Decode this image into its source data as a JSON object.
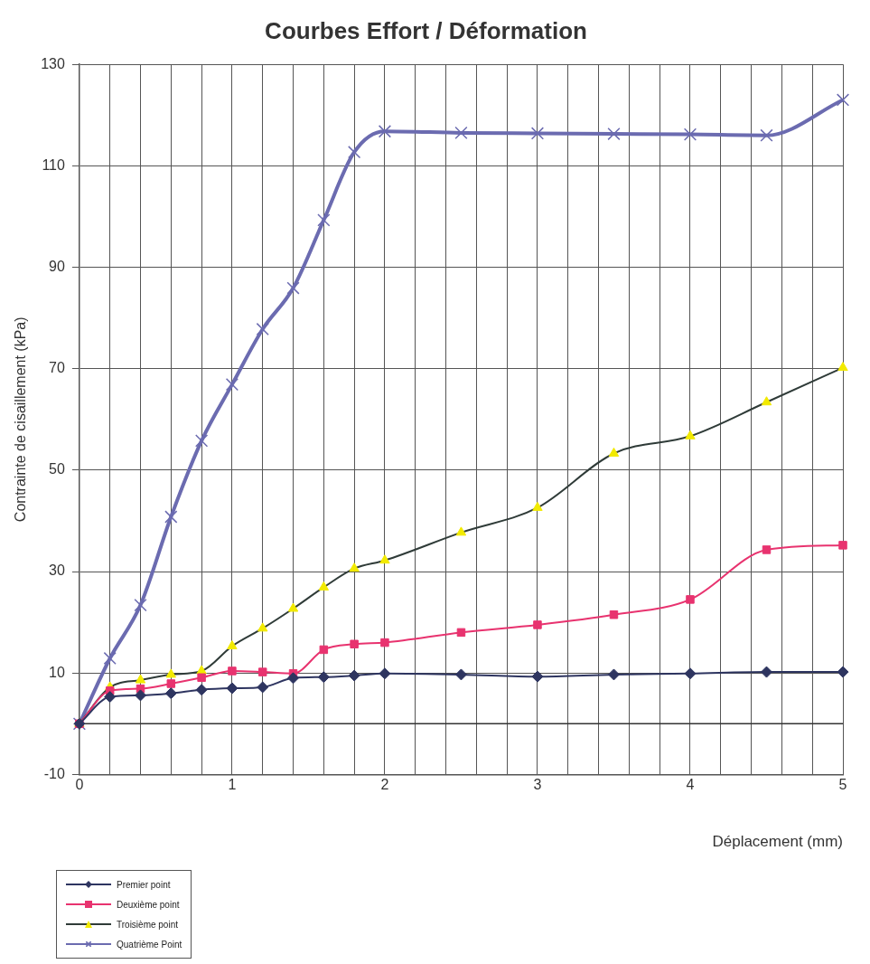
{
  "chart_data": {
    "type": "line",
    "title": "Courbes Effort / Déformation",
    "xlabel": "Déplacement (mm)",
    "ylabel": "Contrainte de cisaillement (kPa)",
    "x": [
      0,
      0.2,
      0.4,
      0.6,
      0.8,
      1.0,
      1.2,
      1.4,
      1.6,
      1.8,
      2.0,
      2.5,
      3,
      3.5,
      4,
      4.5,
      5
    ],
    "series": [
      {
        "name": "Premier point",
        "color": "#2e3560",
        "marker": "diamond",
        "values": [
          0,
          5.3,
          5.6,
          6.0,
          6.7,
          7.0,
          7.2,
          9.0,
          9.2,
          9.5,
          9.9,
          9.7,
          9.3,
          9.7,
          9.9,
          10.2,
          10.2
        ]
      },
      {
        "name": "Deuxième point",
        "color": "#e8336f",
        "marker": "square",
        "values": [
          0,
          6.5,
          6.9,
          7.9,
          9.1,
          10.4,
          10.2,
          9.9,
          14.6,
          15.7,
          16.0,
          18.0,
          19.5,
          21.5,
          24.5,
          34.3,
          35.2
        ]
      },
      {
        "name": "Troisième point",
        "color": "#f2ea00",
        "marker": "triangle",
        "values": [
          0,
          7.2,
          8.6,
          9.7,
          10.4,
          15.3,
          18.8,
          22.7,
          26.9,
          30.6,
          32.2,
          37.7,
          42.6,
          53.3,
          56.7,
          63.4,
          70.2
        ]
      },
      {
        "name": "Quatrième Point",
        "color": "#6b6bb0",
        "marker": "cross",
        "values": [
          0,
          12.9,
          23.4,
          40.8,
          55.8,
          66.9,
          77.8,
          85.9,
          99.3,
          112.7,
          116.8,
          116.5,
          116.4,
          116.3,
          116.2,
          116.0,
          123.0
        ]
      }
    ],
    "xlim": [
      0,
      5
    ],
    "xticks": [
      0,
      1,
      2,
      3,
      4,
      5
    ],
    "ylim": [
      -10,
      130
    ],
    "yticks": [
      -10,
      10,
      30,
      50,
      70,
      90,
      110,
      130
    ],
    "ref_lines": [
      {
        "axis": "y",
        "value": 0,
        "color": "#333333"
      }
    ],
    "grid": true,
    "legend": "bottom left",
    "line_style": "solid"
  }
}
